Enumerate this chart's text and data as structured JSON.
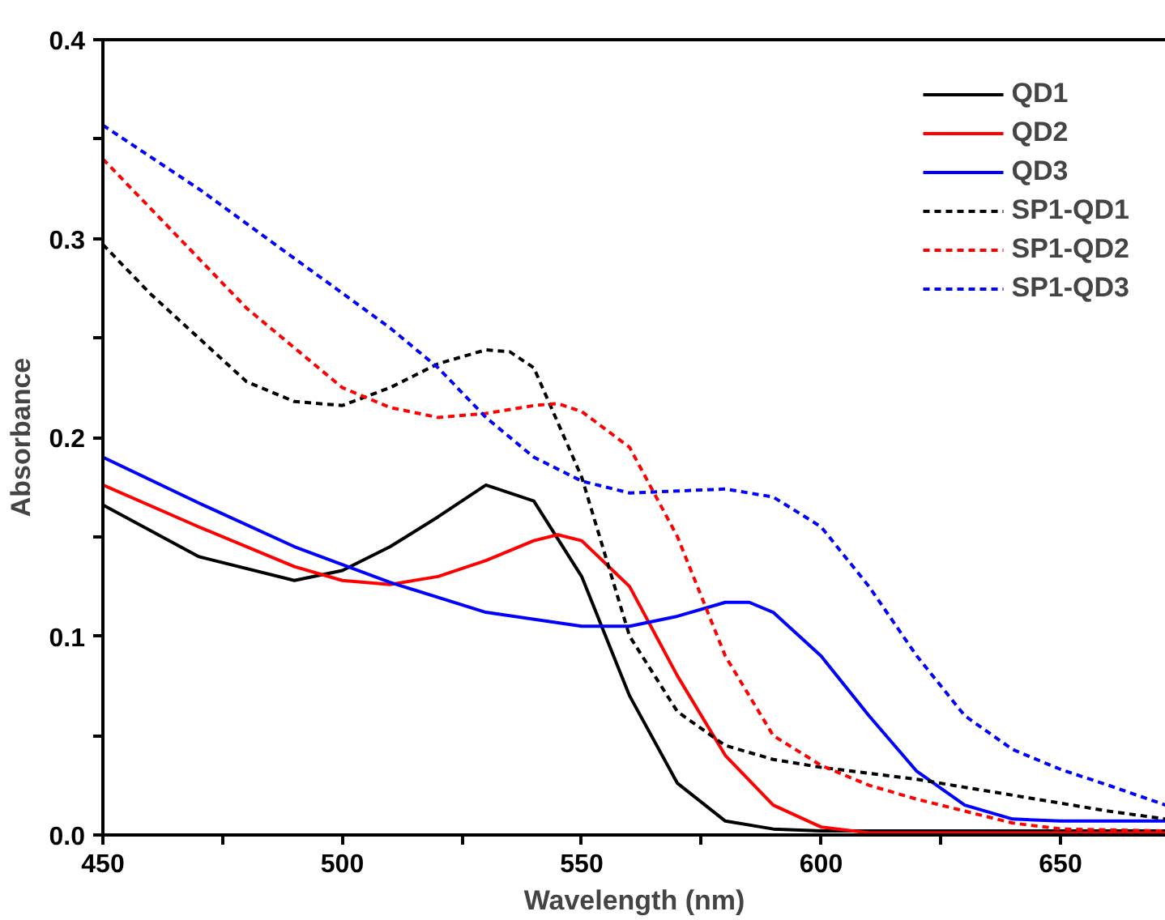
{
  "chart_data": {
    "type": "line",
    "xlabel": "Wavelength (nm)",
    "ylabel": "Absorbance",
    "xlim": [
      450,
      672
    ],
    "ylim": [
      0,
      0.4
    ],
    "xticks": [
      450,
      {
        "value": 475,
        "label": null
      },
      500,
      {
        "value": 525,
        "label": null
      },
      550,
      {
        "value": 575,
        "label": null
      },
      600,
      {
        "value": 625,
        "label": null
      },
      650
    ],
    "yticks": [
      "0.0",
      {
        "value": 0.05,
        "label": null
      },
      0.1,
      {
        "value": 0.15,
        "label": null
      },
      0.2,
      {
        "value": 0.25,
        "label": null
      },
      0.3,
      {
        "value": 0.35,
        "label": null
      },
      0.4
    ],
    "grid": false,
    "legend": "top right",
    "marker": "none",
    "series": [
      {
        "name": "QD1",
        "color": "#000000",
        "line_style": "solid",
        "x": [
          450,
          470,
          490,
          500,
          510,
          520,
          530,
          540,
          550,
          560,
          570,
          580,
          590,
          600,
          620,
          650,
          672
        ],
        "values": [
          0.166,
          0.14,
          0.128,
          0.133,
          0.145,
          0.16,
          0.176,
          0.168,
          0.13,
          0.07,
          0.026,
          0.007,
          0.003,
          0.002,
          0.002,
          0.002,
          0.002
        ]
      },
      {
        "name": "QD2",
        "color": "#ff0000",
        "line_style": "solid",
        "x": [
          450,
          470,
          490,
          500,
          510,
          520,
          530,
          540,
          545,
          550,
          560,
          570,
          580,
          590,
          600,
          610,
          620,
          650,
          672
        ],
        "values": [
          0.176,
          0.155,
          0.135,
          0.128,
          0.126,
          0.13,
          0.138,
          0.148,
          0.151,
          0.148,
          0.125,
          0.08,
          0.04,
          0.015,
          0.004,
          0.001,
          0.001,
          0.001,
          0.001
        ]
      },
      {
        "name": "QD3",
        "color": "#0000ff",
        "line_style": "solid",
        "x": [
          450,
          470,
          490,
          510,
          530,
          550,
          560,
          570,
          580,
          585,
          590,
          600,
          610,
          620,
          630,
          640,
          650,
          672
        ],
        "values": [
          0.19,
          0.167,
          0.145,
          0.127,
          0.112,
          0.105,
          0.105,
          0.11,
          0.117,
          0.117,
          0.112,
          0.09,
          0.06,
          0.032,
          0.015,
          0.008,
          0.007,
          0.007
        ]
      },
      {
        "name": "SP1-QD1",
        "color": "#000000",
        "line_style": "dashed",
        "x": [
          450,
          460,
          470,
          480,
          490,
          500,
          510,
          520,
          530,
          535,
          540,
          550,
          555,
          560,
          570,
          580,
          590,
          600,
          620,
          640,
          660,
          672
        ],
        "values": [
          0.297,
          0.272,
          0.25,
          0.228,
          0.218,
          0.216,
          0.225,
          0.237,
          0.244,
          0.243,
          0.235,
          0.18,
          0.14,
          0.1,
          0.062,
          0.045,
          0.038,
          0.034,
          0.028,
          0.02,
          0.012,
          0.008
        ]
      },
      {
        "name": "SP1-QD2",
        "color": "#ff0000",
        "line_style": "dashed",
        "x": [
          450,
          460,
          470,
          480,
          490,
          500,
          510,
          520,
          530,
          540,
          545,
          550,
          560,
          570,
          580,
          590,
          600,
          610,
          620,
          630,
          640,
          650,
          672
        ],
        "values": [
          0.34,
          0.315,
          0.29,
          0.265,
          0.245,
          0.225,
          0.215,
          0.21,
          0.212,
          0.216,
          0.217,
          0.213,
          0.195,
          0.15,
          0.09,
          0.05,
          0.035,
          0.025,
          0.018,
          0.012,
          0.006,
          0.003,
          0.002
        ]
      },
      {
        "name": "SP1-QD3",
        "color": "#0000ff",
        "line_style": "dashed",
        "x": [
          450,
          470,
          490,
          510,
          520,
          530,
          540,
          550,
          560,
          570,
          580,
          590,
          600,
          610,
          620,
          630,
          640,
          650,
          660,
          672
        ],
        "values": [
          0.357,
          0.325,
          0.29,
          0.255,
          0.235,
          0.21,
          0.19,
          0.178,
          0.172,
          0.173,
          0.174,
          0.17,
          0.155,
          0.125,
          0.09,
          0.06,
          0.043,
          0.033,
          0.025,
          0.015
        ]
      }
    ]
  }
}
